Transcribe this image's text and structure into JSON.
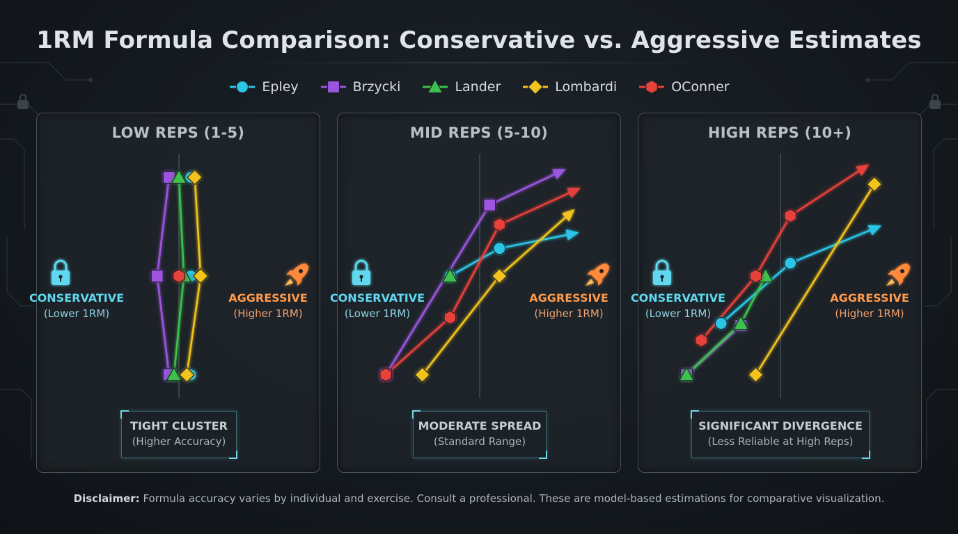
{
  "title": "1RM Formula Comparison: Conservative vs. Aggressive Estimates",
  "legend": [
    {
      "name": "Epley",
      "color": "#29c6e6",
      "marker": "circle"
    },
    {
      "name": "Brzycki",
      "color": "#9b55e0",
      "marker": "square"
    },
    {
      "name": "Lander",
      "color": "#3cc24c",
      "marker": "triangle"
    },
    {
      "name": "Lombardi",
      "color": "#f2c31f",
      "marker": "diamond"
    },
    {
      "name": "OConner",
      "color": "#e8413a",
      "marker": "hexagon"
    }
  ],
  "axis_labels": {
    "conservative": "CONSERVATIVE",
    "conservative_sub": "(Lower 1RM)",
    "aggressive": "AGGRESSIVE",
    "aggressive_sub": "(Higher 1RM)"
  },
  "icons": {
    "conservative": "lock-icon",
    "aggressive": "rocket-icon"
  },
  "panels": [
    {
      "title": "LOW REPS (1-5)",
      "summary_head": "TIGHT CLUSTER",
      "summary_sub": "(Higher Accuracy)"
    },
    {
      "title": "MID REPS (5-10)",
      "summary_head": "MODERATE SPREAD",
      "summary_sub": "(Standard Range)"
    },
    {
      "title": "HIGH REPS (10+)",
      "summary_head": "SIGNIFICANT DIVERGENCE",
      "summary_sub": "(Less Reliable at High Reps)"
    }
  ],
  "disclaimer": {
    "label": "Disclaimer:",
    "text": "Formula accuracy varies by individual and exercise. Consult a professional. These are model-based estimations for comparative visualization."
  },
  "chart_data": [
    {
      "type": "line",
      "title": "LOW REPS (1-5)",
      "xlim": [
        -1,
        1
      ],
      "ylim": [
        -1,
        1
      ],
      "series": [
        {
          "name": "Epley",
          "points": [
            [
              0.12,
              -1
            ],
            [
              0.12,
              0
            ],
            [
              0.12,
              1
            ]
          ]
        },
        {
          "name": "Brzycki",
          "points": [
            [
              -0.1,
              -1
            ],
            [
              -0.22,
              0
            ],
            [
              -0.1,
              1
            ]
          ]
        },
        {
          "name": "Lander",
          "points": [
            [
              -0.05,
              -1
            ],
            [
              0.05,
              0
            ],
            [
              0.0,
              1
            ]
          ]
        },
        {
          "name": "Lombardi",
          "points": [
            [
              0.08,
              -1
            ],
            [
              0.22,
              0
            ],
            [
              0.16,
              1
            ]
          ]
        },
        {
          "name": "OConner",
          "points": [
            [
              0.0,
              0
            ]
          ]
        }
      ]
    },
    {
      "type": "line",
      "title": "MID REPS (5-10)",
      "xlim": [
        -1,
        1
      ],
      "ylim": [
        -1,
        1
      ],
      "series": [
        {
          "name": "Epley",
          "points": [
            [
              -0.3,
              0
            ],
            [
              0.2,
              0.28
            ],
            [
              0.95,
              0.43
            ]
          ],
          "arrow": true
        },
        {
          "name": "Brzycki",
          "points": [
            [
              -0.95,
              -1
            ],
            [
              0.1,
              0.72
            ],
            [
              0.82,
              1.06
            ]
          ],
          "arrow": true
        },
        {
          "name": "Lander",
          "points": [
            [
              -0.3,
              0
            ]
          ]
        },
        {
          "name": "Lombardi",
          "points": [
            [
              -0.58,
              -1
            ],
            [
              0.2,
              0
            ],
            [
              0.92,
              0.64
            ]
          ],
          "arrow": true
        },
        {
          "name": "OConner",
          "points": [
            [
              -0.95,
              -1
            ],
            [
              -0.3,
              -0.42
            ],
            [
              0.2,
              0.52
            ],
            [
              0.97,
              0.87
            ]
          ],
          "arrow": true
        }
      ]
    },
    {
      "type": "line",
      "title": "HIGH REPS (10+)",
      "xlim": [
        -1,
        1
      ],
      "ylim": [
        -1,
        1
      ],
      "series": [
        {
          "name": "Epley",
          "points": [
            [
              -0.6,
              -0.48
            ],
            [
              0.1,
              0.13
            ],
            [
              0.97,
              0.49
            ]
          ],
          "arrow": true
        },
        {
          "name": "Brzycki",
          "points": [
            [
              -0.95,
              -1
            ],
            [
              -0.4,
              -0.5
            ]
          ]
        },
        {
          "name": "Lander",
          "points": [
            [
              -0.95,
              -1
            ],
            [
              -0.4,
              -0.48
            ],
            [
              -0.15,
              0
            ]
          ]
        },
        {
          "name": "Lombardi",
          "points": [
            [
              -0.25,
              -1
            ],
            [
              0.95,
              0.93
            ]
          ]
        },
        {
          "name": "OConner",
          "points": [
            [
              -0.8,
              -0.65
            ],
            [
              -0.25,
              0
            ],
            [
              0.1,
              0.61
            ],
            [
              0.85,
              1.1
            ]
          ],
          "arrow": true
        }
      ]
    }
  ]
}
